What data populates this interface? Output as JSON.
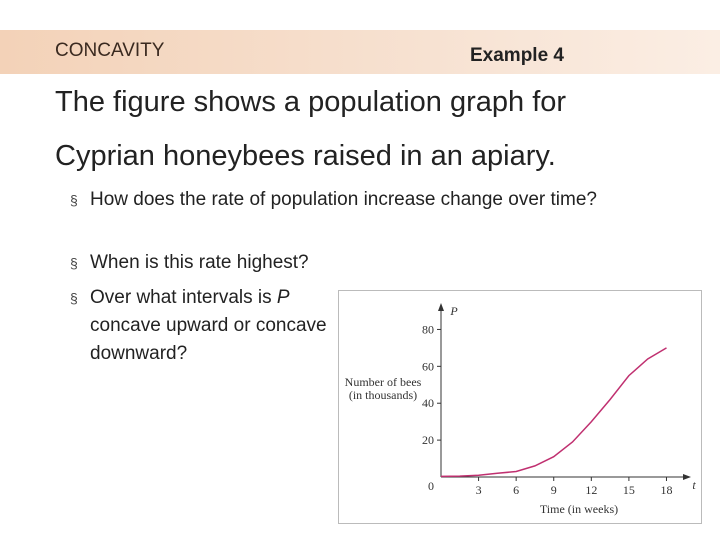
{
  "header": {
    "topic": "CONCAVITY",
    "example": "Example 4"
  },
  "title": [
    "The figure shows a population graph for",
    "Cyprian honeybees raised in an apiary."
  ],
  "bullets": [
    [
      "How does the rate of population increase change over time?"
    ],
    [
      "When is this rate highest?"
    ],
    [
      "Over what intervals  is ",
      "P",
      " concave upward or concave downward?"
    ]
  ],
  "figure": {
    "type": "line",
    "y_axis_letter": "P",
    "x_axis_letter": "t",
    "ylabel": [
      "Number of bees",
      "(in thousands)"
    ],
    "xlabel": "Time (in weeks)",
    "origin": 0,
    "x": [
      0,
      1.5,
      3,
      4.5,
      6,
      7.5,
      9,
      10.5,
      12,
      13.5,
      15,
      16.5,
      18
    ],
    "values": [
      0.3,
      0.5,
      1,
      2,
      3,
      6,
      11,
      19,
      30,
      42,
      55,
      64,
      70
    ],
    "color": "#c03070",
    "xlim": [
      0,
      19
    ],
    "ylim": [
      0,
      90
    ],
    "xticks": [
      3,
      6,
      9,
      12,
      15,
      18
    ],
    "yticks": [
      20,
      40,
      60,
      80
    ]
  }
}
